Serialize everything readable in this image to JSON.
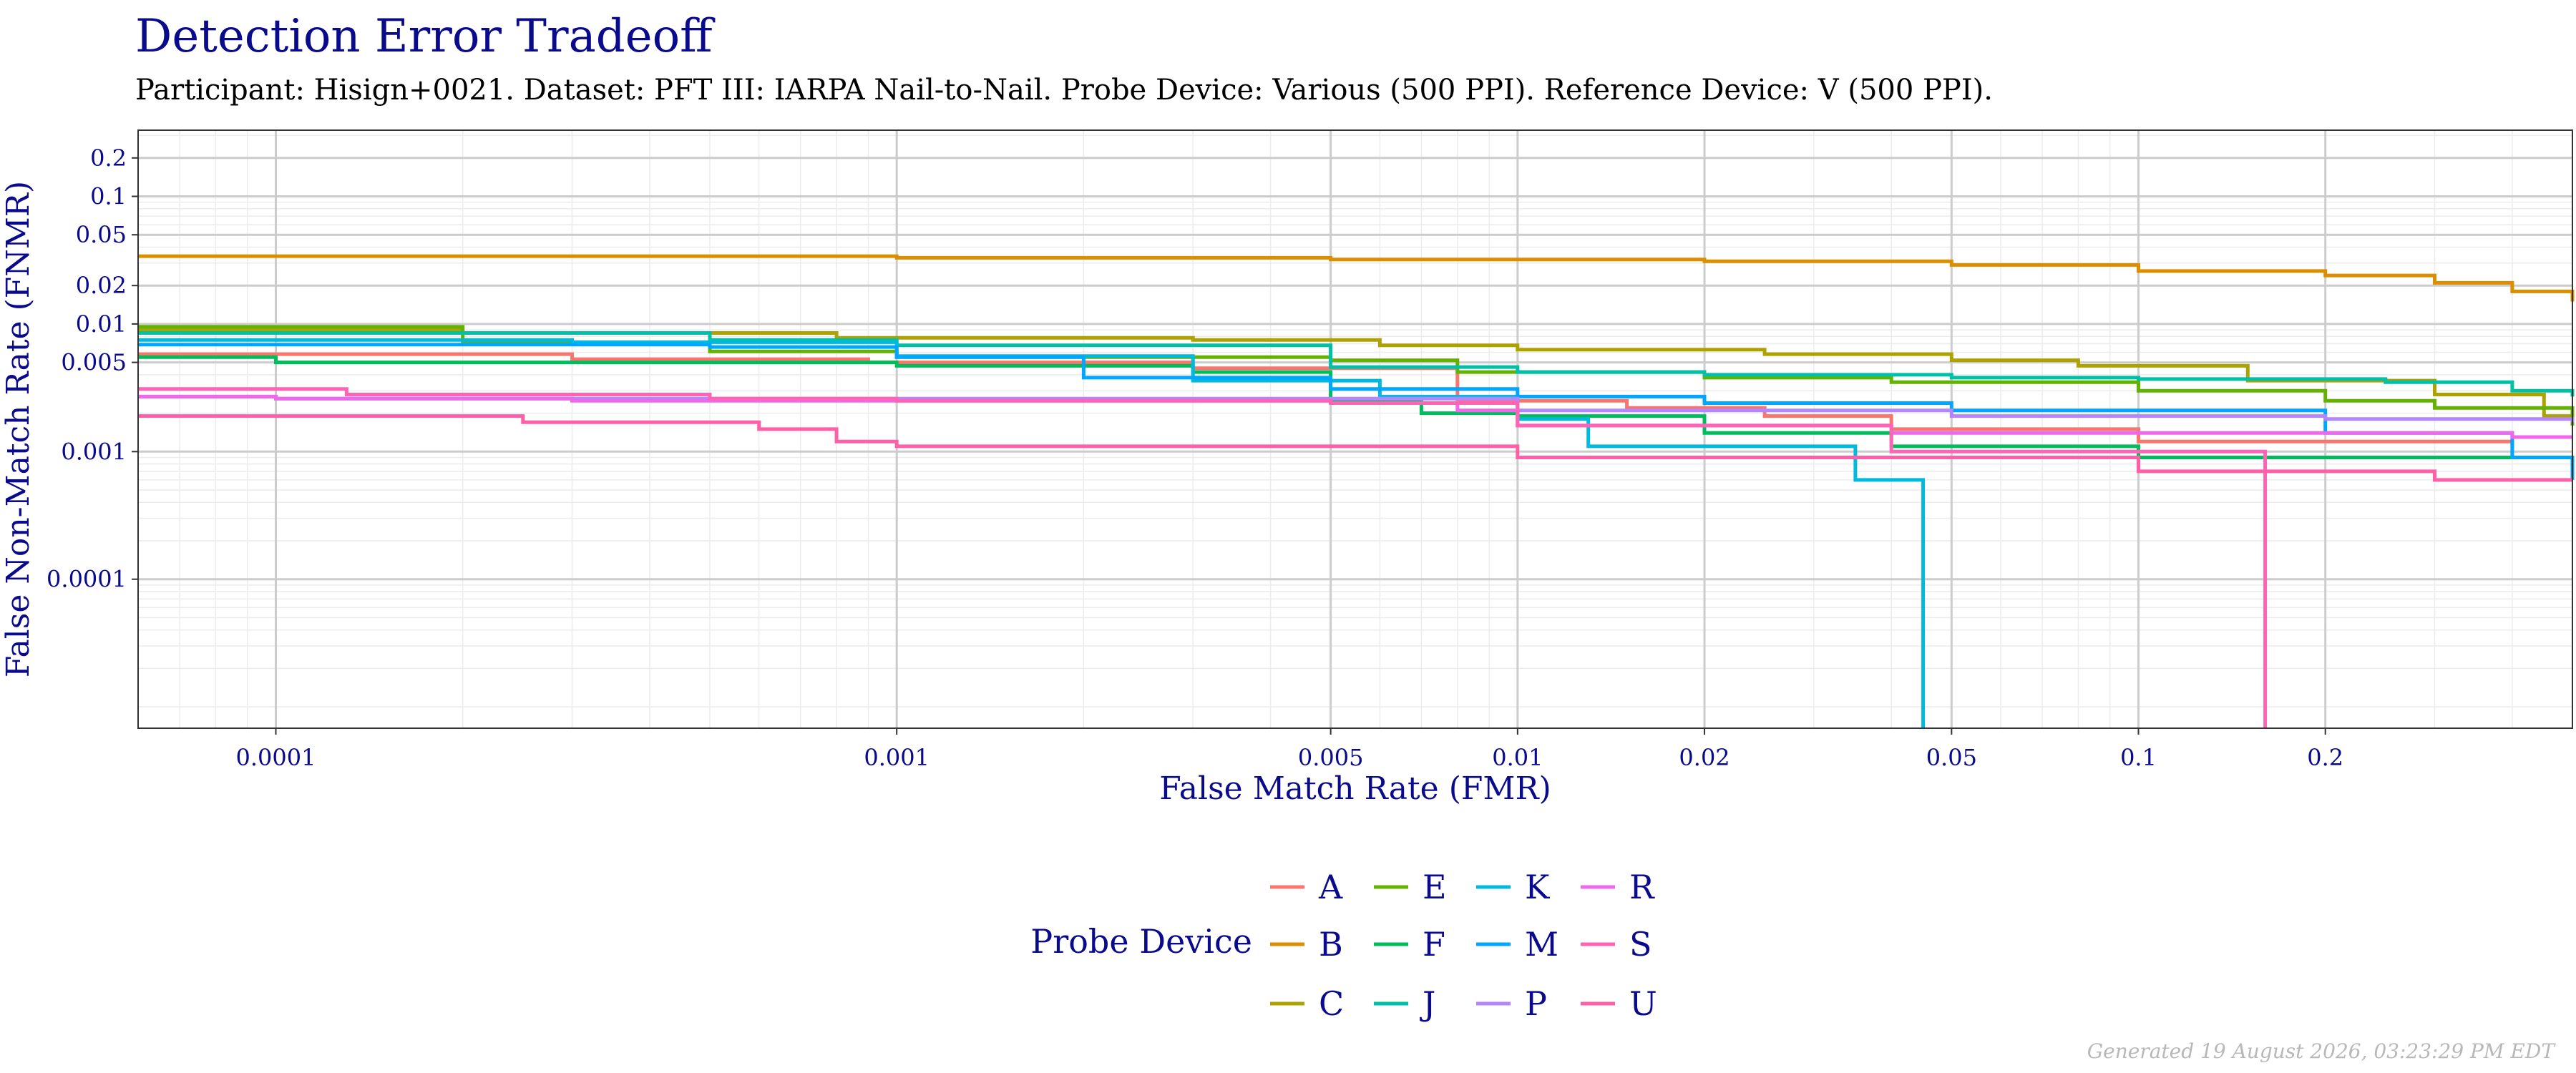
{
  "chart_data": {
    "type": "line",
    "title": "Detection Error Tradeoff",
    "subtitle": "Participant: Hisign+0021. Dataset: PFT III: IARPA Nail-to-Nail. Probe Device: Various (500 PPI). Reference Device: V (500 PPI).",
    "xlabel": "False Match Rate (FMR)",
    "ylabel": "False Non-Match Rate (FNMR)",
    "x_scale": "log",
    "y_scale": "log",
    "xlim": [
      6e-05,
      0.5
    ],
    "ylim": [
      6.8e-06,
      0.33
    ],
    "x_ticks": [
      0.0001,
      0.001,
      0.005,
      0.01,
      0.02,
      0.05,
      0.1,
      0.2
    ],
    "x_tick_labels": [
      "0.0001",
      "0.001",
      "0.005",
      "0.01",
      "0.02",
      "0.05",
      "0.1",
      "0.2"
    ],
    "y_ticks": [
      0.0001,
      0.001,
      0.005,
      0.01,
      0.02,
      0.05,
      0.1,
      0.2
    ],
    "y_tick_labels": [
      "0.0001",
      "0.001",
      "0.005",
      "0.01",
      "0.02",
      "0.05",
      "0.1",
      "0.2"
    ],
    "grid": true,
    "legend_title": "Probe Device",
    "legend_position": "bottom",
    "series": [
      {
        "name": "A",
        "color": "#F8766D",
        "x": [
          6e-05,
          0.0003,
          0.0009,
          0.003,
          0.008,
          0.015,
          0.025,
          0.04,
          0.1,
          0.4
        ],
        "y": [
          0.0058,
          0.0053,
          0.005,
          0.0045,
          0.0025,
          0.0022,
          0.0019,
          0.0015,
          0.0012,
          0.0011
        ]
      },
      {
        "name": "B",
        "color": "#DB8E00",
        "x": [
          6e-05,
          0.0001,
          0.001,
          0.005,
          0.02,
          0.05,
          0.1,
          0.2,
          0.3,
          0.4,
          0.5
        ],
        "y": [
          0.034,
          0.034,
          0.033,
          0.032,
          0.031,
          0.029,
          0.026,
          0.024,
          0.021,
          0.018,
          0.015
        ]
      },
      {
        "name": "C",
        "color": "#AEA200",
        "x": [
          6e-05,
          0.0002,
          0.0008,
          0.003,
          0.006,
          0.01,
          0.025,
          0.05,
          0.08,
          0.15,
          0.3,
          0.45,
          0.5
        ],
        "y": [
          0.009,
          0.0085,
          0.0078,
          0.0075,
          0.0068,
          0.0063,
          0.0058,
          0.0052,
          0.0047,
          0.0036,
          0.0028,
          0.0019,
          0.0017
        ]
      },
      {
        "name": "E",
        "color": "#64B200",
        "x": [
          6e-05,
          0.0002,
          0.0005,
          0.001,
          0.005,
          0.008,
          0.02,
          0.04,
          0.1,
          0.2,
          0.3,
          0.5
        ],
        "y": [
          0.0095,
          0.0072,
          0.0061,
          0.0055,
          0.0052,
          0.0042,
          0.0038,
          0.0035,
          0.003,
          0.0025,
          0.0022,
          0.0016
        ]
      },
      {
        "name": "F",
        "color": "#00BD5C",
        "x": [
          6e-05,
          0.0001,
          0.0005,
          0.001,
          0.003,
          0.005,
          0.007,
          0.01,
          0.02,
          0.04,
          0.1,
          0.5
        ],
        "y": [
          0.0055,
          0.005,
          0.005,
          0.0047,
          0.0042,
          0.0025,
          0.002,
          0.0019,
          0.0014,
          0.0011,
          0.0009,
          0.0009
        ]
      },
      {
        "name": "J",
        "color": "#00C1A7",
        "x": [
          6e-05,
          0.0005,
          0.001,
          0.005,
          0.01,
          0.02,
          0.05,
          0.1,
          0.25,
          0.4,
          0.5
        ],
        "y": [
          0.0085,
          0.0075,
          0.0068,
          0.0046,
          0.0042,
          0.004,
          0.0038,
          0.0037,
          0.0035,
          0.003,
          0.0027
        ]
      },
      {
        "name": "K",
        "color": "#00BADE",
        "x": [
          6e-05,
          0.0003,
          0.001,
          0.003,
          0.006,
          0.01,
          0.013,
          0.035,
          0.045,
          0.045
        ],
        "y": [
          0.0075,
          0.0072,
          0.0056,
          0.0036,
          0.0027,
          0.0018,
          0.0011,
          0.0006,
          0.0006,
          6.8e-06
        ]
      },
      {
        "name": "M",
        "color": "#00A6FF",
        "x": [
          6e-05,
          0.0005,
          0.001,
          0.002,
          0.005,
          0.01,
          0.02,
          0.05,
          0.1,
          0.2,
          0.4,
          0.5
        ],
        "y": [
          0.0069,
          0.0066,
          0.0055,
          0.0038,
          0.0031,
          0.0027,
          0.0024,
          0.0021,
          0.0021,
          0.0014,
          0.0009,
          0.0006
        ]
      },
      {
        "name": "P",
        "color": "#B385FF",
        "x": [
          6e-05,
          0.0001,
          0.001,
          0.004,
          0.01,
          0.05,
          0.1,
          0.2,
          0.5
        ],
        "y": [
          0.0027,
          0.0026,
          0.0026,
          0.0026,
          0.0021,
          0.0019,
          0.0019,
          0.0018,
          0.0017
        ]
      },
      {
        "name": "R",
        "color": "#EF67EB",
        "x": [
          6e-05,
          0.0001,
          0.0003,
          0.001,
          0.005,
          0.008,
          0.01,
          0.04,
          0.1,
          0.2,
          0.4,
          0.5
        ],
        "y": [
          0.0027,
          0.0026,
          0.0025,
          0.0025,
          0.0024,
          0.0021,
          0.0016,
          0.0014,
          0.0014,
          0.0014,
          0.0013,
          0.0013
        ]
      },
      {
        "name": "S",
        "color": "#FF63B6",
        "x": [
          6e-05,
          0.00013,
          0.0005,
          0.001,
          0.005,
          0.01,
          0.04,
          0.09,
          0.16,
          0.16
        ],
        "y": [
          0.0031,
          0.0028,
          0.0026,
          0.0025,
          0.0024,
          0.0016,
          0.001,
          0.001,
          0.0006,
          6.8e-06
        ]
      },
      {
        "name": "U",
        "color": "#FF5FA6",
        "x": [
          6e-05,
          0.00025,
          0.0006,
          0.0008,
          0.001,
          0.008,
          0.01,
          0.04,
          0.1,
          0.3,
          0.5
        ],
        "y": [
          0.0019,
          0.0017,
          0.0015,
          0.0012,
          0.0011,
          0.0011,
          0.0009,
          0.0009,
          0.0007,
          0.0006,
          0.0006
        ]
      }
    ]
  },
  "footer": "Generated 19 August 2026, 03:23:29 PM EDT"
}
